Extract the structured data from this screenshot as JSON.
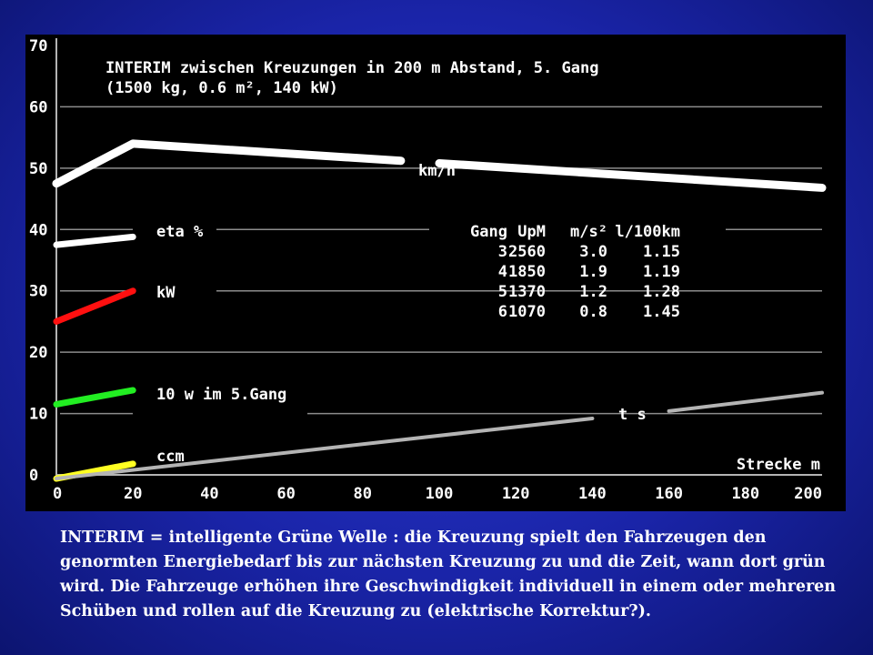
{
  "chart_data": {
    "type": "line",
    "title": "INTERIM zwischen Kreuzungen in 200 m Abstand, 5. Gang",
    "subtitle": "(1500 kg, 0.6 m², 140 kW)",
    "xlabel": "Strecke m",
    "ylabel": "",
    "xlim": [
      0,
      200
    ],
    "ylim": [
      0,
      70
    ],
    "xticks": [
      "0",
      "20",
      "40",
      "60",
      "80",
      "100",
      "120",
      "140",
      "160",
      "180",
      "200"
    ],
    "yticks": [
      "0",
      "10",
      "20",
      "30",
      "40",
      "50",
      "60",
      "70"
    ],
    "grid": "horizontal",
    "series": [
      {
        "name": "km/h",
        "color": "#ffffff",
        "x": [
          0,
          20,
          90,
          100,
          200
        ],
        "y": [
          47.5,
          54,
          51.2,
          50.8,
          46.8
        ]
      },
      {
        "name": "eta %",
        "color": "#ffffff",
        "x": [
          0,
          20
        ],
        "y": [
          37.5,
          38.8
        ]
      },
      {
        "name": "kW",
        "color": "#ff1010",
        "x": [
          0,
          20
        ],
        "y": [
          25,
          30
        ]
      },
      {
        "name": "10 w im 5.Gang",
        "color": "#22ee22",
        "x": [
          0,
          20
        ],
        "y": [
          11.5,
          13.8
        ]
      },
      {
        "name": "ccm",
        "color": "#ffff22",
        "x": [
          0,
          20
        ],
        "y": [
          -0.6,
          1.8
        ]
      },
      {
        "name": "t s",
        "color": "#b4b4b4",
        "x": [
          0,
          140,
          160,
          200
        ],
        "y": [
          -0.6,
          9.2,
          10.4,
          13.4
        ]
      }
    ],
    "table": {
      "headers": [
        "Gang",
        "UpM",
        "m/s²",
        "l/100km"
      ],
      "rows": [
        [
          "3",
          "2560",
          "3.0",
          "1.15"
        ],
        [
          "4",
          "1850",
          "1.9",
          "1.19"
        ],
        [
          "5",
          "1370",
          "1.2",
          "1.28"
        ],
        [
          "6",
          "1070",
          "0.8",
          "1.45"
        ]
      ]
    }
  },
  "caption": "INTERIM = intelligente Grüne Welle : die Kreuzung spielt den Fahrzeugen den genormten Energiebedarf  bis zur nächsten Kreuzung zu und die Zeit, wann dort grün wird. Die Fahrzeuge erhöhen ihre Geschwindigkeit individuell in einem oder mehreren Schüben und rollen auf die Kreuzung zu (elektrische Korrektur?)."
}
